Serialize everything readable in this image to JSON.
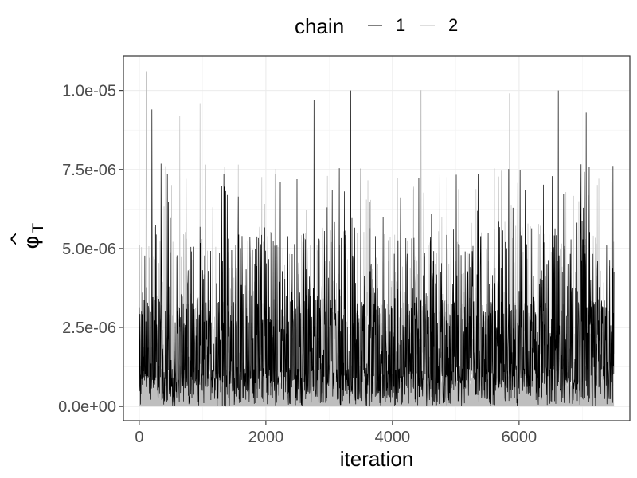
{
  "chart_data": {
    "type": "line",
    "xlabel": "iteration",
    "ylabel": {
      "symbol": "φ",
      "subscript": "T",
      "accent": "^"
    },
    "xlim": [
      -250,
      7750
    ],
    "ylim": [
      -4.5e-07,
      1.11e-05
    ],
    "x_ticks": [
      0,
      2000,
      4000,
      6000
    ],
    "x_tick_labels": [
      "0",
      "2000",
      "4000",
      "6000"
    ],
    "y_ticks": [
      0,
      2.5e-06,
      5e-06,
      7.5e-06,
      1e-05
    ],
    "y_tick_labels": [
      "0.0e+00",
      "2.5e-06",
      "5.0e-06",
      "7.5e-06",
      "1.0e-05"
    ],
    "grid": true,
    "legend": {
      "title": "chain",
      "position": "top",
      "entries": [
        "1",
        "2"
      ]
    },
    "iterations": 7500,
    "series": [
      {
        "name": "1",
        "color": "#000000"
      },
      {
        "name": "2",
        "color": "#bebebe"
      }
    ],
    "peaks": [
      {
        "x": 110,
        "y": 1.06e-05,
        "chain": "2"
      },
      {
        "x": 200,
        "y": 9.4e-06,
        "chain": "1"
      },
      {
        "x": 640,
        "y": 9.2e-06,
        "chain": "2"
      },
      {
        "x": 960,
        "y": 9.6e-06,
        "chain": "2"
      },
      {
        "x": 2760,
        "y": 9.7e-06,
        "chain": "1"
      },
      {
        "x": 3340,
        "y": 1e-05,
        "chain": "1"
      },
      {
        "x": 4450,
        "y": 1e-05,
        "chain": "2"
      },
      {
        "x": 5850,
        "y": 9.9e-06,
        "chain": "2"
      },
      {
        "x": 6620,
        "y": 1e-05,
        "chain": "1"
      },
      {
        "x": 7060,
        "y": 9.3e-06,
        "chain": "1"
      }
    ]
  }
}
